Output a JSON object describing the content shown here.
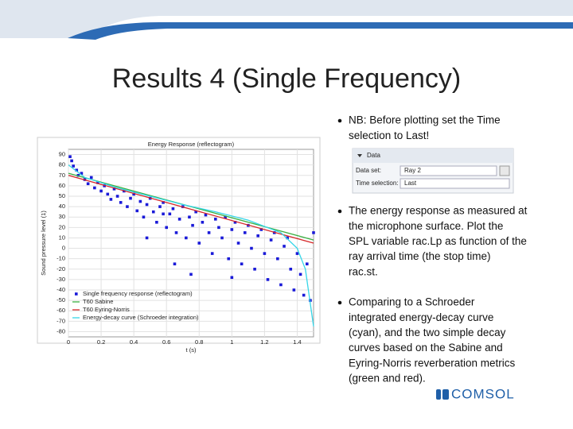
{
  "header": {
    "title": "Results 4 (Single Frequency)"
  },
  "bullets": [
    {
      "lines": [
        "NB: Before plotting set the Time",
        "selection to Last!"
      ]
    },
    {
      "lines": [
        "The energy response as measured at",
        "the microphone surface. Plot the",
        "SPL variable rac.Lp as function of the",
        "ray arrival time (the stop time)",
        "rac.st."
      ]
    },
    {
      "lines": [
        "Comparing to a Schroeder",
        "integrated energy-decay curve",
        "(cyan), and the two simple decay",
        "curves based on the Sabine and",
        "Eyring-Norris reverberation metrics",
        "(green and red)."
      ]
    }
  ],
  "panel": {
    "heading": "Data",
    "fields": [
      {
        "label": "Data set:",
        "value": "Ray 2"
      },
      {
        "label": "Time selection:",
        "value": "Last"
      }
    ]
  },
  "logo": "COMSOL",
  "chart_data": {
    "type": "scatter",
    "title": "Energy Response (reflectogram)",
    "x_label": "t (s)",
    "y_label": "Sound pressure level (1)",
    "xlim": [
      0,
      1.5
    ],
    "ylim": [
      -85,
      95
    ],
    "xticks": [
      0,
      0.2,
      0.4,
      0.6,
      0.8,
      1,
      1.2,
      1.4
    ],
    "yticks": [
      -80,
      -70,
      -60,
      -50,
      -40,
      -30,
      -20,
      -10,
      0,
      10,
      20,
      30,
      40,
      50,
      60,
      70,
      80,
      90
    ],
    "grid": true,
    "series": [
      {
        "name": "Single frequency response (reflectogram)",
        "color": "#1a1ad8",
        "mode": "markers",
        "x": [
          0.01,
          0.02,
          0.03,
          0.05,
          0.06,
          0.08,
          0.1,
          0.12,
          0.14,
          0.16,
          0.18,
          0.2,
          0.22,
          0.24,
          0.26,
          0.28,
          0.3,
          0.32,
          0.34,
          0.36,
          0.38,
          0.4,
          0.42,
          0.44,
          0.46,
          0.48,
          0.5,
          0.52,
          0.54,
          0.56,
          0.58,
          0.6,
          0.62,
          0.64,
          0.66,
          0.68,
          0.7,
          0.72,
          0.74,
          0.76,
          0.78,
          0.8,
          0.82,
          0.84,
          0.86,
          0.88,
          0.9,
          0.92,
          0.94,
          0.96,
          0.98,
          1.0,
          1.02,
          1.04,
          1.06,
          1.08,
          1.1,
          1.12,
          1.14,
          1.16,
          1.18,
          1.2,
          1.22,
          1.24,
          1.26,
          1.28,
          1.3,
          1.32,
          1.34,
          1.36,
          1.38,
          1.4,
          1.42,
          1.44,
          1.46,
          1.48,
          0.65,
          0.75,
          0.48,
          1.0,
          1.5,
          0.58
        ],
        "values": [
          88,
          84,
          79,
          75,
          70,
          72,
          66,
          62,
          68,
          58,
          63,
          55,
          60,
          52,
          47,
          57,
          50,
          44,
          55,
          40,
          48,
          52,
          36,
          45,
          30,
          42,
          48,
          35,
          25,
          40,
          44,
          20,
          33,
          38,
          15,
          28,
          40,
          10,
          30,
          22,
          35,
          5,
          25,
          32,
          15,
          -5,
          28,
          20,
          10,
          30,
          -10,
          18,
          25,
          5,
          -15,
          15,
          22,
          0,
          -20,
          12,
          18,
          -5,
          -30,
          8,
          15,
          -10,
          -35,
          2,
          10,
          -20,
          -40,
          -5,
          -25,
          -45,
          -15,
          -50,
          -15,
          -25,
          10,
          -28,
          15,
          33
        ]
      },
      {
        "name": "T60 Sabine",
        "color": "#3cb043",
        "mode": "lines",
        "x": [
          0,
          1.5
        ],
        "values": [
          72,
          8
        ]
      },
      {
        "name": "T60 Eyring-Norris",
        "color": "#d62728",
        "mode": "lines",
        "x": [
          0,
          1.5
        ],
        "values": [
          70,
          5
        ]
      },
      {
        "name": "Energy-decay curve (Schroeder integration)",
        "color": "#35d6e8",
        "mode": "lines",
        "x": [
          0,
          0.1,
          0.3,
          0.5,
          0.7,
          0.9,
          1.1,
          1.3,
          1.4,
          1.45,
          1.5
        ],
        "values": [
          80,
          68,
          58,
          50,
          42,
          35,
          27,
          15,
          0,
          -20,
          -75
        ]
      }
    ]
  }
}
